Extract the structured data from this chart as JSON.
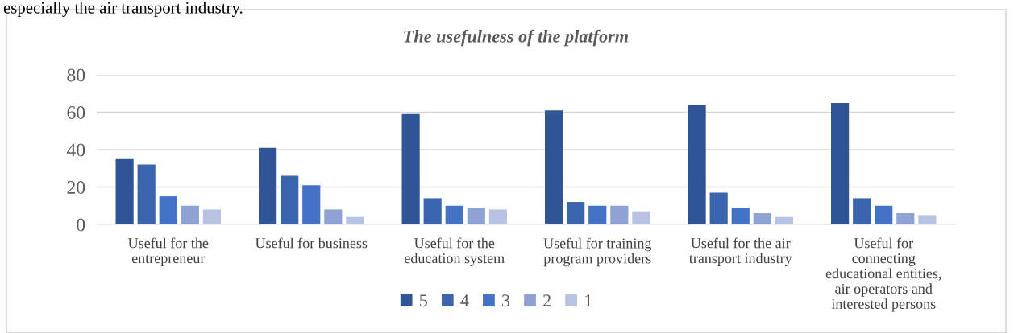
{
  "chart_data": {
    "type": "bar",
    "title": "The usefulness of the platform",
    "annotations": [
      "especially the air transport industry."
    ],
    "categories": [
      "Useful for the\nentrepreneur",
      "Useful for business",
      "Useful for the\neducation system",
      "Useful for training\nprogram providers",
      "Useful for the air\ntransport industry",
      "Useful for\nconnecting\neducational entities,\nair operators and\ninterested persons"
    ],
    "series": [
      {
        "name": "5",
        "color": "#2f5597",
        "values": [
          35,
          41,
          59,
          61,
          64,
          65
        ]
      },
      {
        "name": "4",
        "color": "#3a64ad",
        "values": [
          32,
          26,
          14,
          12,
          17,
          14
        ]
      },
      {
        "name": "3",
        "color": "#4472c4",
        "values": [
          15,
          21,
          10,
          10,
          9,
          10
        ]
      },
      {
        "name": "2",
        "color": "#8ea3d4",
        "values": [
          10,
          8,
          9,
          10,
          6,
          6
        ]
      },
      {
        "name": "1",
        "color": "#b8c3e3",
        "values": [
          8,
          4,
          8,
          7,
          4,
          5
        ]
      }
    ],
    "ylim": [
      0,
      80
    ],
    "yticks": [
      0,
      20,
      40,
      60,
      80
    ],
    "grid": "y",
    "legend": "bottom"
  }
}
